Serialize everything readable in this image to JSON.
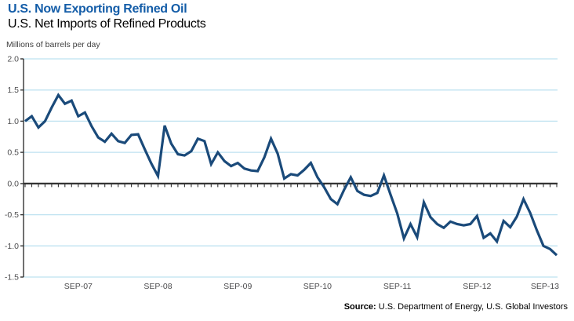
{
  "header": {
    "title": "U.S. Now Exporting Refined Oil",
    "subtitle": "U.S. Net Imports of Refined Products"
  },
  "footer": {
    "source_label": "Source:",
    "source_text": " U.S. Department of Energy, U.S. Global Investors"
  },
  "colors": {
    "title_blue": "#145DA8",
    "line_navy": "#1A4A7A",
    "grid_light_blue": "#BEE2F0",
    "axis_dark": "#333333",
    "tick_label_gray": "#4D4D4F"
  },
  "chart_data": {
    "type": "line",
    "title": "U.S. Net Imports of Refined Products",
    "ylabel": "Millions of barrels per day",
    "xlabel": "",
    "ylim": [
      -1.5,
      2.0
    ],
    "y_ticks": [
      2.0,
      1.5,
      1.0,
      0.5,
      0.0,
      -0.5,
      -1.0,
      -1.5
    ],
    "grid": "horizontal-only, light blue, zero line emphasized dark with monthly tick marks",
    "legend": "none",
    "frequency": "monthly",
    "x_start": "JAN-07",
    "x_end": "SEP-13",
    "x_tick_labels": [
      "SEP-07",
      "SEP-08",
      "SEP-09",
      "SEP-10",
      "SEP-11",
      "SEP-12",
      "SEP-13"
    ],
    "x_tick_month_indices": [
      8,
      20,
      32,
      44,
      56,
      68,
      80
    ],
    "line_color": "#1A4A7A",
    "series": [
      {
        "name": "U.S. Net Imports of Refined Products (millions of barrels per day)",
        "values": [
          1.0,
          1.08,
          0.9,
          1.0,
          1.22,
          1.42,
          1.28,
          1.33,
          1.08,
          1.14,
          0.92,
          0.74,
          0.67,
          0.8,
          0.68,
          0.65,
          0.78,
          0.79,
          0.55,
          0.32,
          0.12,
          0.93,
          0.64,
          0.47,
          0.45,
          0.52,
          0.72,
          0.68,
          0.31,
          0.5,
          0.36,
          0.28,
          0.33,
          0.24,
          0.21,
          0.2,
          0.42,
          0.72,
          0.48,
          0.08,
          0.15,
          0.13,
          0.22,
          0.33,
          0.1,
          -0.06,
          -0.25,
          -0.33,
          -0.1,
          0.1,
          -0.12,
          -0.18,
          -0.2,
          -0.15,
          0.13,
          -0.18,
          -0.48,
          -0.88,
          -0.65,
          -0.86,
          -0.3,
          -0.54,
          -0.65,
          -0.71,
          -0.61,
          -0.65,
          -0.67,
          -0.65,
          -0.52,
          -0.87,
          -0.8,
          -0.93,
          -0.6,
          -0.7,
          -0.53,
          -0.25,
          -0.47,
          -0.75,
          -1.0,
          -1.05,
          -1.15
        ]
      }
    ]
  }
}
